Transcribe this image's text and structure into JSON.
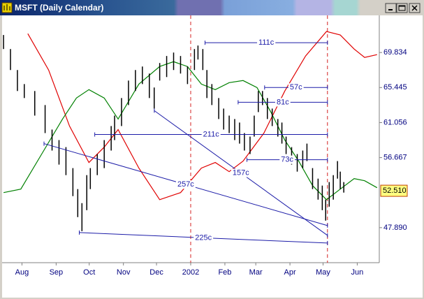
{
  "window": {
    "title": "MSFT (Daily Calendar)"
  },
  "chart_data": {
    "type": "hl",
    "bar_color": "#000000",
    "x": [
      -16.7,
      -10.4,
      -4.1,
      2.1,
      11.6,
      21.0,
      27.3,
      33.6,
      39.9,
      46.2,
      50.6,
      54.4,
      58.8,
      62.0,
      68.3,
      74.6,
      80.9,
      84.0,
      90.3,
      96.6,
      102.9,
      109.2,
      115.5,
      119.9,
      124.9,
      131.2,
      137.5,
      143.8,
      150.1,
      156.4,
      159.6,
      164.0,
      167.7,
      172.2,
      178.4,
      182.9,
      187.9,
      192.9,
      197.3,
      201.7,
      206.8,
      210.6,
      214.3,
      218.1,
      222.5,
      226.9,
      232.0,
      235.7,
      239.5,
      244.5,
      249.6,
      254.6,
      258.4,
      263.5,
      268.5,
      272.3,
      275.4,
      278.6,
      282.3,
      286.1,
      288.6,
      291.8
    ],
    "high": [
      72.03,
      70.27,
      67.64,
      65.88,
      65.01,
      63.25,
      60.18,
      58.86,
      57.98,
      55.35,
      52.72,
      50.96,
      54.47,
      55.35,
      57.11,
      58.86,
      60.62,
      61.93,
      64.13,
      66.32,
      67.64,
      68.08,
      67.2,
      65.45,
      68.52,
      69.4,
      69.83,
      69.4,
      68.08,
      70.27,
      70.71,
      70.27,
      67.64,
      65.88,
      64.13,
      62.81,
      61.93,
      61.5,
      61.06,
      59.74,
      59.3,
      61.93,
      65.01,
      65.01,
      64.13,
      62.81,
      61.5,
      61.06,
      59.3,
      57.98,
      57.11,
      57.55,
      58.42,
      55.35,
      54.03,
      53.16,
      51.4,
      53.6,
      54.47,
      56.23,
      54.91,
      53.6
    ],
    "low": [
      70.27,
      67.64,
      65.01,
      64.13,
      61.93,
      59.74,
      57.55,
      55.79,
      54.47,
      51.84,
      49.21,
      47.45,
      50.08,
      52.72,
      54.47,
      55.35,
      57.55,
      58.86,
      60.62,
      63.25,
      65.01,
      65.88,
      64.13,
      62.81,
      66.32,
      66.76,
      67.64,
      67.2,
      65.88,
      67.64,
      68.96,
      67.64,
      64.13,
      63.25,
      61.5,
      60.18,
      59.74,
      58.86,
      58.42,
      57.55,
      57.11,
      59.3,
      62.37,
      63.25,
      61.5,
      60.62,
      59.3,
      58.42,
      57.11,
      55.79,
      54.91,
      55.35,
      56.23,
      52.72,
      51.4,
      50.08,
      48.77,
      50.52,
      51.4,
      54.03,
      52.72,
      52.28
    ],
    "xlim": [
      -18,
      324
    ],
    "xticks": [
      {
        "value": 0,
        "label": "Aug"
      },
      {
        "value": 31,
        "label": "Sep"
      },
      {
        "value": 61,
        "label": "Oct"
      },
      {
        "value": 92,
        "label": "Nov"
      },
      {
        "value": 122,
        "label": "Dec"
      },
      {
        "value": 153,
        "label": "2002"
      },
      {
        "value": 184,
        "label": "Feb"
      },
      {
        "value": 212,
        "label": "Mar"
      },
      {
        "value": 243,
        "label": "Apr"
      },
      {
        "value": 273,
        "label": "May"
      },
      {
        "value": 304,
        "label": "Jun"
      }
    ],
    "ylim": [
      43.5,
      74.49
    ],
    "yticks": [
      {
        "value": 47.89,
        "label": "47.890"
      },
      56.667,
      61.056,
      65.445,
      69.834
    ],
    "last_price": {
      "value": 52.51,
      "label": "52.510"
    },
    "curves": [
      {
        "color": "#e00000",
        "x": [
          5.3,
          24.2,
          43.1,
          60.7,
          74.6,
          87.2,
          106.0,
          124.9,
          143.8,
          162.7,
          175.3,
          187.9,
          200.5,
          219.4,
          238.3,
          257.2,
          276.1,
          288.6,
          301.2,
          310.7,
          322
        ],
        "y": [
          72.2,
          67.64,
          60.62,
          56.05,
          57.98,
          60.18,
          55.35,
          51.4,
          52.28,
          55.35,
          56.05,
          54.91,
          56.23,
          59.74,
          65.01,
          69.4,
          72.47,
          72.03,
          70.27,
          69.22,
          69.57
        ]
      },
      {
        "color": "#008000",
        "x": [
          -16.7,
          -1.0,
          17.9,
          36.8,
          49.4,
          60.7,
          74.6,
          87.2,
          106.0,
          124.9,
          137.5,
          150.1,
          162.7,
          175.3,
          187.9,
          200.5,
          213.1,
          225.7,
          238.3,
          250.9,
          263.5,
          276.1,
          288.6,
          301.2,
          310.7,
          322
        ],
        "y": [
          52.28,
          52.72,
          57.11,
          61.5,
          64.13,
          65.18,
          64.13,
          61.5,
          65.88,
          68.08,
          68.69,
          68.08,
          65.88,
          65.18,
          66.06,
          66.32,
          65.45,
          62.37,
          58.86,
          56.23,
          53.16,
          51.4,
          52.72,
          54.03,
          53.77,
          52.89
        ]
      }
    ],
    "cycle_color": "#1c1ca8",
    "cycles": [
      {
        "label": "111c",
        "x": [
          166,
          277
        ],
        "y": [
          71.06,
          71.06
        ]
      },
      {
        "label": "57c",
        "x": [
          220,
          277
        ],
        "y": [
          65.45,
          65.45
        ]
      },
      {
        "label": "81c",
        "x": [
          196,
          277
        ],
        "y": [
          63.6,
          63.6
        ]
      },
      {
        "label": "211c",
        "x": [
          66,
          277
        ],
        "y": [
          59.56,
          59.56
        ]
      },
      {
        "label": "73c",
        "x": [
          204,
          277
        ],
        "y": [
          56.4,
          56.4
        ]
      },
      {
        "label": "157c",
        "x": [
          120,
          277
        ],
        "y": [
          62.55,
          46.92
        ]
      },
      {
        "label": "257c",
        "x": [
          20,
          277
        ],
        "y": [
          58.42,
          48.15
        ]
      },
      {
        "label": "225c",
        "x": [
          52,
          277
        ],
        "y": [
          47.27,
          45.96
        ]
      }
    ],
    "markers": {
      "color": "#d42020",
      "x": [
        153,
        277
      ]
    }
  }
}
